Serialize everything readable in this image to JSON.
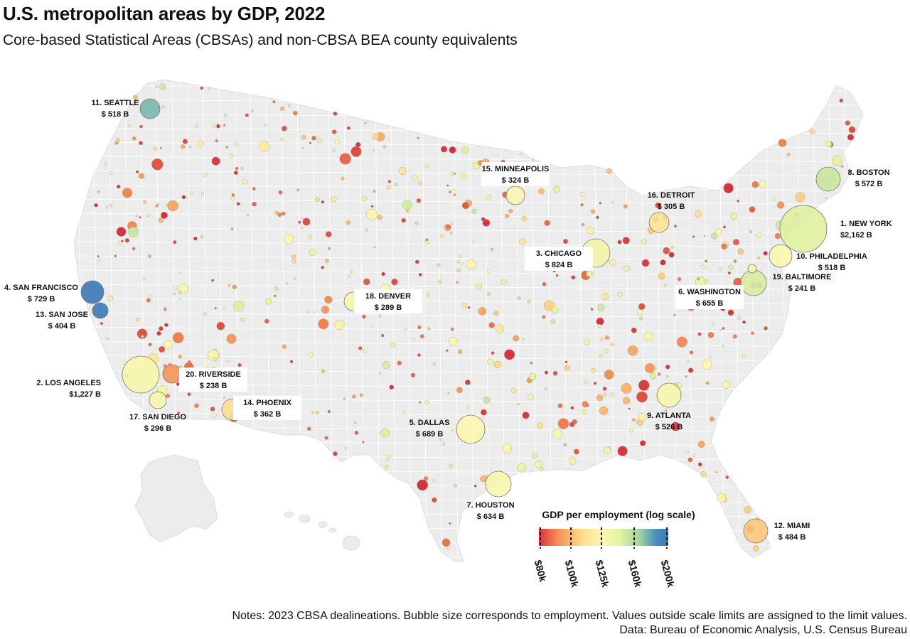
{
  "title": "U.S. metropolitan areas by GDP, 2022",
  "subtitle": "Core-based Statistical Areas (CBSAs) and non-CBSA BEA county equivalents",
  "notes": {
    "line1": "Notes: 2023 CBSA dealineations.  Bubble size corresponds to employment.  Values outside scale limits are assigned to the limit values.",
    "line2": "Data: Bureau of Economic Analysis, U.S. Census Bureau"
  },
  "legend": {
    "title": "GDP per employment (log scale)",
    "ticks": [
      "$80k",
      "$100k",
      "$125k",
      "$160k",
      "$200k"
    ],
    "colors": [
      "#d7303c",
      "#f58c52",
      "#fdd888",
      "#fdf7b0",
      "#e5f4a0",
      "#9fd3a0",
      "#4a91c2",
      "#3b79b6"
    ]
  },
  "colors": {
    "land": "#ececec",
    "border": "#ffffff",
    "bubble_edge": "#8a8a8a"
  },
  "metros": [
    {
      "rank": 1,
      "name": "NEW YORK",
      "gdp": "$2,162 B",
      "gdp_per_employment": "$142k"
    },
    {
      "rank": 2,
      "name": "LOS ANGELES",
      "gdp": "$1,227 B",
      "gdp_per_employment": "$125k"
    },
    {
      "rank": 3,
      "name": "CHICAGO",
      "gdp": "$ 824 B",
      "gdp_per_employment": "$130k"
    },
    {
      "rank": 4,
      "name": "SAN FRANCISCO",
      "gdp": "$ 729 B",
      "gdp_per_employment": "$200k"
    },
    {
      "rank": 5,
      "name": "DALLAS",
      "gdp": "$ 689 B",
      "gdp_per_employment": "$120k"
    },
    {
      "rank": 6,
      "name": "WASHINGTON",
      "gdp": "$ 655 B",
      "gdp_per_employment": "$145k"
    },
    {
      "rank": 7,
      "name": "HOUSTON",
      "gdp": "$ 634 B",
      "gdp_per_employment": "$125k"
    },
    {
      "rank": 8,
      "name": "BOSTON",
      "gdp": "$ 572 B",
      "gdp_per_employment": "$150k"
    },
    {
      "rank": 9,
      "name": "ATLANTA",
      "gdp": "$ 526 B",
      "gdp_per_employment": "$125k"
    },
    {
      "rank": 10,
      "name": "PHILADELPHIA",
      "gdp": "$ 518 B",
      "gdp_per_employment": "$123k"
    },
    {
      "rank": 11,
      "name": "SEATTLE",
      "gdp": "$ 518 B",
      "gdp_per_employment": "$175k"
    },
    {
      "rank": 12,
      "name": "MIAMI",
      "gdp": "$ 484 B",
      "gdp_per_employment": "$105k"
    },
    {
      "rank": 13,
      "name": "SAN JOSE",
      "gdp": "$ 404 B",
      "gdp_per_employment": "$200k"
    },
    {
      "rank": 14,
      "name": "PHOENIX",
      "gdp": "$ 362 B",
      "gdp_per_employment": "$110k"
    },
    {
      "rank": 15,
      "name": "MINNEAPOLIS",
      "gdp": "$ 324 B",
      "gdp_per_employment": "$122k"
    },
    {
      "rank": 16,
      "name": "DETROIT",
      "gdp": "$ 305 B",
      "gdp_per_employment": "$112k"
    },
    {
      "rank": 17,
      "name": "SAN DIEGO",
      "gdp": "$ 296 B",
      "gdp_per_employment": "$125k"
    },
    {
      "rank": 18,
      "name": "DENVER",
      "gdp": "$ 289 B",
      "gdp_per_employment": "$125k"
    },
    {
      "rank": 19,
      "name": "BALTIMORE",
      "gdp": "$ 241 B",
      "gdp_per_employment": "$125k"
    },
    {
      "rank": 20,
      "name": "RIVERSIDE",
      "gdp": "$ 238 B",
      "gdp_per_employment": "$95k"
    }
  ]
}
